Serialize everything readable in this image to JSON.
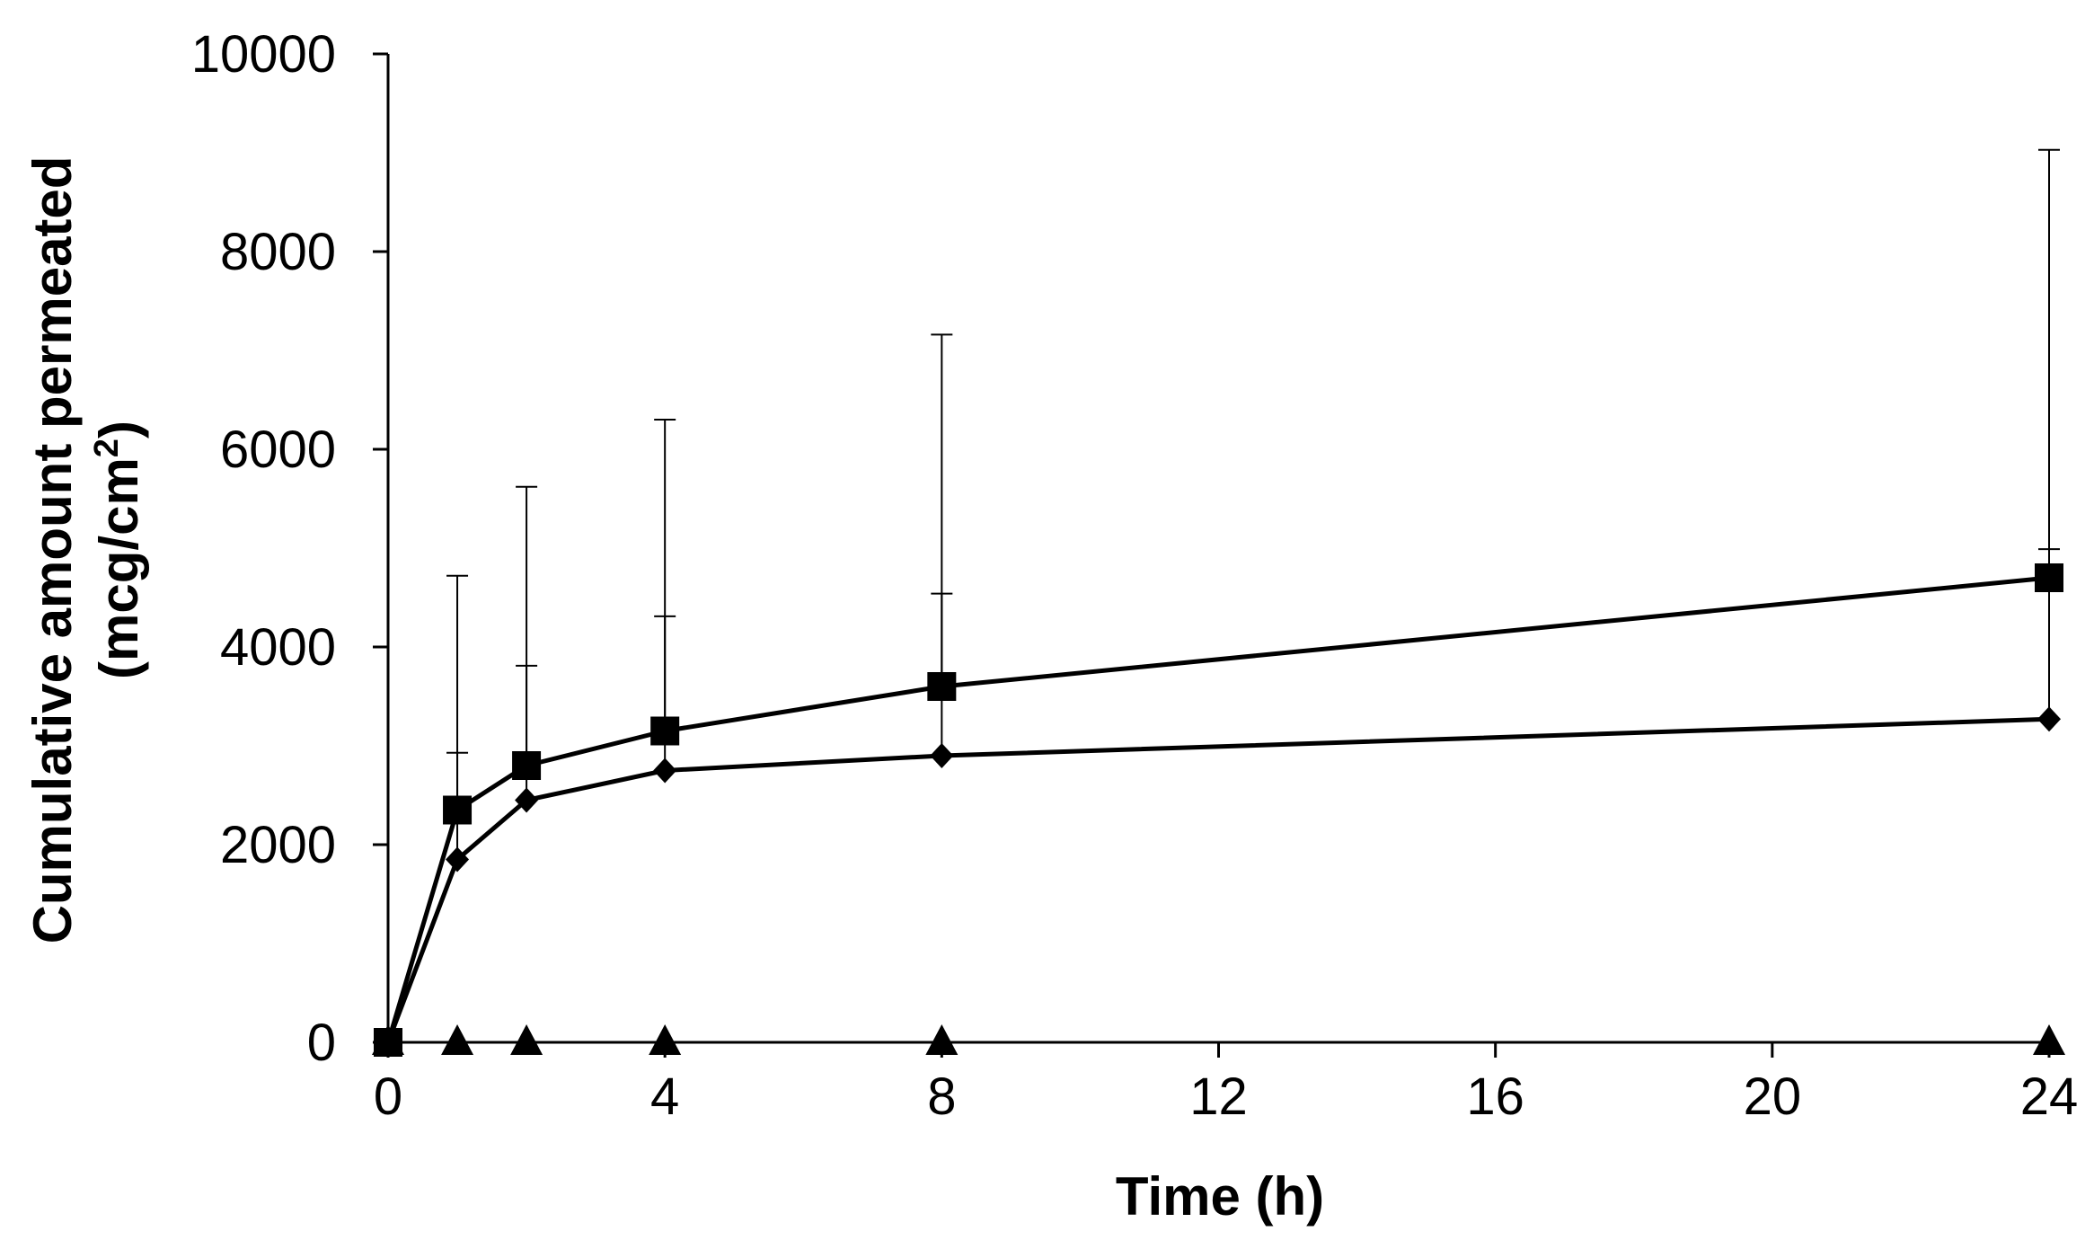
{
  "chart_data": {
    "type": "line",
    "title": "",
    "xlabel": "Time (h)",
    "ylabel_line1": "Cumulative amount permeated",
    "ylabel_line2_prefix": "(mcg/cm",
    "ylabel_line2_superscript": "2",
    "ylabel_line2_suffix": ")",
    "xlim": [
      0,
      24
    ],
    "ylim": [
      0,
      10000
    ],
    "xticks": [
      0,
      4,
      8,
      12,
      16,
      20,
      24
    ],
    "yticks": [
      0,
      2000,
      4000,
      6000,
      8000,
      10000
    ],
    "grid": false,
    "legend": null,
    "series": [
      {
        "name": "square-series",
        "marker": "square",
        "color": "#000000",
        "x": [
          0,
          1,
          2,
          4,
          8,
          24
        ],
        "y": [
          0,
          2350,
          2800,
          3150,
          3600,
          4700
        ],
        "error_upper": [
          0,
          4720,
          5620,
          6300,
          7160,
          9030
        ]
      },
      {
        "name": "diamond-series",
        "marker": "diamond",
        "color": "#000000",
        "x": [
          0,
          1,
          2,
          4,
          8,
          24
        ],
        "y": [
          0,
          1850,
          2450,
          2750,
          2900,
          3270
        ],
        "error_upper": [
          0,
          2930,
          3810,
          4310,
          4540,
          4990
        ]
      },
      {
        "name": "triangle-series",
        "marker": "triangle",
        "color": "#000000",
        "x": [
          0,
          1,
          2,
          4,
          8,
          24
        ],
        "y": [
          0,
          0,
          0,
          0,
          0,
          0
        ],
        "error_upper": [
          0,
          0,
          0,
          0,
          0,
          0
        ]
      }
    ]
  }
}
